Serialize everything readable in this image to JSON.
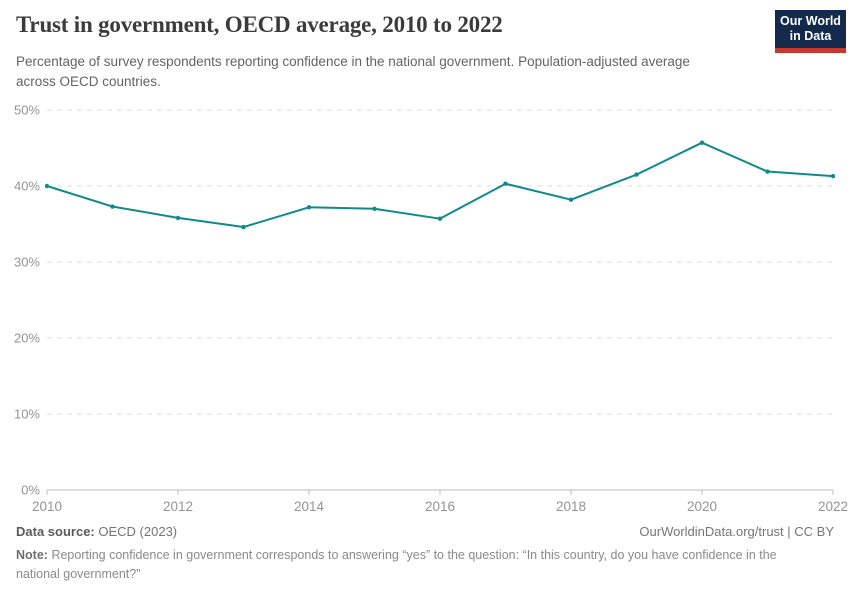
{
  "header": {
    "title": "Trust in government, OECD average, 2010 to 2022",
    "subtitle": "Percentage of survey respondents reporting confidence in the national government. Population-adjusted average across OECD countries.",
    "logo_line1": "Our World",
    "logo_line2": "in Data"
  },
  "chart_data": {
    "type": "line",
    "title": "Trust in government, OECD average, 2010 to 2022",
    "series_name": "OECD average",
    "x": [
      2010,
      2011,
      2012,
      2013,
      2014,
      2015,
      2016,
      2017,
      2018,
      2019,
      2020,
      2021,
      2022
    ],
    "values": [
      40.0,
      37.3,
      35.8,
      34.6,
      37.2,
      37.0,
      35.7,
      40.3,
      38.2,
      41.5,
      45.7,
      41.9,
      41.3
    ],
    "xticks": [
      2010,
      2012,
      2014,
      2016,
      2018,
      2020,
      2022
    ],
    "yticks": [
      0,
      10,
      20,
      30,
      40,
      50
    ],
    "ytick_suffix": "%",
    "ylim": [
      0,
      50
    ],
    "xlim": [
      2010,
      2022
    ],
    "xlabel": "",
    "ylabel": "",
    "grid": "horizontal-dashed",
    "legend": "none"
  },
  "colors": {
    "line": "#0e8a8b",
    "grid": "#dcdcdc",
    "axis_line": "#bdbdbd",
    "axis_text": "#949494",
    "logo_navy": "#142a4d",
    "logo_red": "#c8372d"
  },
  "footer": {
    "source_label": "Data source:",
    "source_value": "OECD (2023)",
    "link": "OurWorldinData.org/trust | CC BY",
    "note_label": "Note:",
    "note_text": "Reporting confidence in government corresponds to answering “yes” to the question: “In this country, do you have confidence in the national government?”"
  }
}
